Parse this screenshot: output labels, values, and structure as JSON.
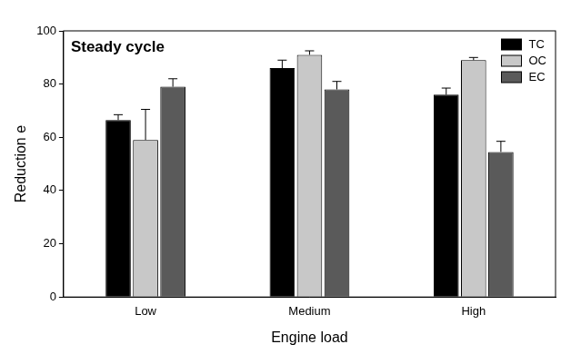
{
  "chart_data": {
    "type": "bar",
    "title": "Steady cycle",
    "x_label": "Engine load",
    "y_label": "Reduction e",
    "categories": [
      "Low",
      "Medium",
      "High"
    ],
    "series": [
      {
        "name": "TC",
        "color": "#000000",
        "values": [
          66.5,
          86,
          76
        ],
        "errors": [
          2,
          3,
          2.5
        ]
      },
      {
        "name": "OC",
        "color": "#c8c8c8",
        "values": [
          59,
          91,
          89
        ],
        "errors": [
          11.5,
          1.5,
          1
        ]
      },
      {
        "name": "EC",
        "color": "#5a5a5a",
        "values": [
          79,
          78,
          54.5
        ],
        "errors": [
          3,
          3,
          4
        ]
      }
    ],
    "ylim": [
      0,
      100
    ],
    "yticks": [
      0,
      20,
      40,
      60,
      80,
      100
    ],
    "grid": false,
    "legend": "upper right"
  }
}
